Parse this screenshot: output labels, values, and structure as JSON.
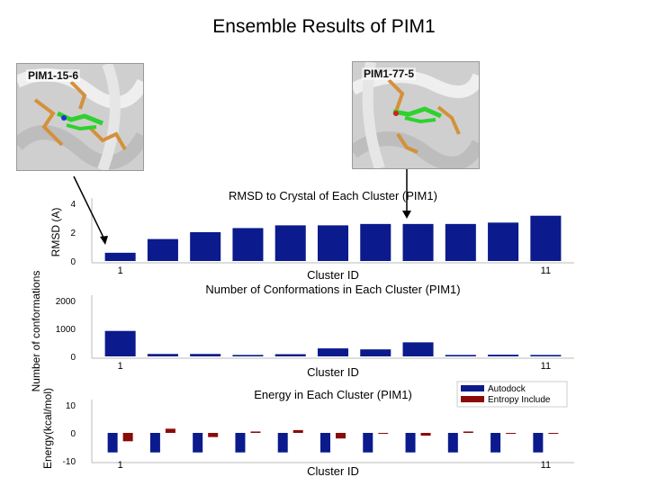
{
  "slide": {
    "title": "Ensemble Results of PIM1"
  },
  "structures": [
    {
      "label": "PIM1-15-6"
    },
    {
      "label": "PIM1-77-5"
    }
  ],
  "chart_data": [
    {
      "type": "bar",
      "title": "RMSD to Crystal of Each Cluster (PIM1)",
      "xlabel": "Cluster ID",
      "ylabel": "RMSD (A)",
      "categories": [
        "1",
        "2",
        "3",
        "4",
        "5",
        "6",
        "7",
        "8",
        "9",
        "10",
        "11"
      ],
      "tick_labels": [
        "1",
        "11"
      ],
      "values": [
        0.6,
        1.6,
        2.1,
        2.4,
        2.6,
        2.6,
        2.7,
        2.7,
        2.7,
        2.8,
        3.3
      ],
      "yticks": [
        "0",
        "2",
        "4"
      ],
      "ylim": [
        0,
        4.2
      ],
      "colors": {
        "bar": "#0b1a8c"
      }
    },
    {
      "type": "bar",
      "title": "Number of Conformations in Each Cluster (PIM1)",
      "xlabel": "Cluster ID",
      "ylabel": "Number of conformations",
      "categories": [
        "1",
        "2",
        "3",
        "4",
        "5",
        "6",
        "7",
        "8",
        "9",
        "10",
        "11"
      ],
      "tick_labels": [
        "1",
        "11"
      ],
      "values": [
        1050,
        100,
        100,
        60,
        90,
        330,
        290,
        580,
        60,
        70,
        60
      ],
      "yticks": [
        "0",
        "1000",
        "2000"
      ],
      "ylim": [
        0,
        2300
      ],
      "colors": {
        "bar": "#0b1a8c"
      }
    },
    {
      "type": "bar",
      "title": "Energy in Each Cluster (PIM1)",
      "xlabel": "Cluster ID",
      "ylabel": "Energy(kcal/mol)",
      "categories": [
        "1",
        "2",
        "3",
        "4",
        "5",
        "6",
        "7",
        "8",
        "9",
        "10",
        "11"
      ],
      "tick_labels": [
        "1",
        "11"
      ],
      "series": [
        {
          "name": "Autodock",
          "values": [
            -7,
            -7,
            -7,
            -7,
            -7,
            -7,
            -7,
            -7,
            -7,
            -7,
            -7
          ]
        },
        {
          "name": "Entropy Include",
          "values": [
            -3,
            1.5,
            -1.5,
            0.5,
            1,
            -2,
            0,
            -1,
            0.5,
            0,
            0
          ]
        }
      ],
      "yticks": [
        "-10",
        "0",
        "10"
      ],
      "ylim": [
        -10,
        10
      ],
      "legend": "top-right",
      "colors": {
        "Autodock": "#0b1a8c",
        "Entropy Include": "#8b0a0a"
      }
    }
  ]
}
